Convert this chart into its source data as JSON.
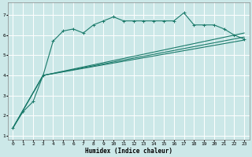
{
  "xlabel": "Humidex (Indice chaleur)",
  "bg_color": "#cce8e8",
  "grid_color": "#ffffff",
  "line_color": "#1a7a6a",
  "xlim": [
    -0.5,
    23.5
  ],
  "ylim": [
    0.8,
    7.6
  ],
  "xticks": [
    0,
    1,
    2,
    3,
    4,
    5,
    6,
    7,
    8,
    9,
    10,
    11,
    12,
    13,
    14,
    15,
    16,
    17,
    18,
    19,
    20,
    21,
    22,
    23
  ],
  "yticks": [
    1,
    2,
    3,
    4,
    5,
    6,
    7
  ],
  "series1_x": [
    0,
    1,
    2,
    3,
    4,
    5,
    6,
    7,
    8,
    9,
    10,
    11,
    12,
    13,
    14,
    15,
    16,
    17,
    18,
    19,
    20,
    21,
    22,
    23
  ],
  "series1_y": [
    1.4,
    2.2,
    2.7,
    4.0,
    5.7,
    6.2,
    6.3,
    6.1,
    6.5,
    6.7,
    6.9,
    6.7,
    6.7,
    6.7,
    6.7,
    6.7,
    6.7,
    7.1,
    6.5,
    6.5,
    6.5,
    6.3,
    6.0,
    5.8
  ],
  "series2_x": [
    0,
    3,
    23
  ],
  "series2_y": [
    1.4,
    4.0,
    5.75
  ],
  "series3_x": [
    0,
    3,
    23
  ],
  "series3_y": [
    1.4,
    4.0,
    5.9
  ],
  "series4_x": [
    0,
    3,
    23
  ],
  "series4_y": [
    1.4,
    4.0,
    6.1
  ]
}
